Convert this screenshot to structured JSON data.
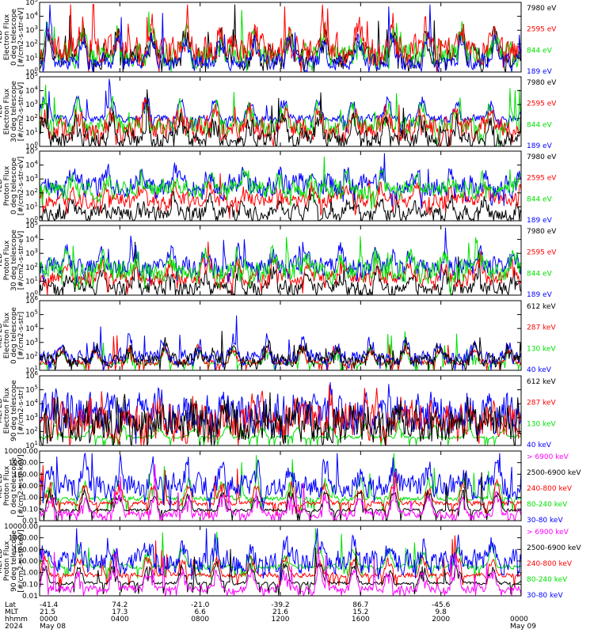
{
  "colors": {
    "black": "#000000",
    "red": "#ff0000",
    "green": "#00e000",
    "blue": "#0000ff",
    "magenta": "#ff00ff"
  },
  "chart_data": [
    {
      "type": "line",
      "ylabel": [
        "TED",
        "Electron Flux",
        "0 deg telescope",
        "[#/cm2-s-str-eV]"
      ],
      "ytick_labels": [
        "10^0",
        "10^1",
        "10^2",
        "10^3",
        "10^4",
        "10^5"
      ],
      "ylim": [
        1,
        100000
      ],
      "legend": [
        {
          "label": "7980 eV",
          "color": "black"
        },
        {
          "label": "2595 eV",
          "color": "red"
        },
        {
          "label": "844 eV",
          "color": "green"
        },
        {
          "label": "189 eV",
          "color": "blue"
        }
      ],
      "order": [
        "black",
        "green",
        "red",
        "blue"
      ],
      "levels": {
        "blue": [
          0.15,
          0.1
        ],
        "green": [
          0.25,
          0.15
        ],
        "red": [
          0.3,
          0.2
        ],
        "black": [
          0.2,
          0.15
        ]
      },
      "spikes": 0.45
    },
    {
      "type": "line",
      "ylabel": [
        "TED",
        "Electron Flux",
        "30 deg telescope",
        "[#/cm2-s-str-eV]"
      ],
      "ytick_labels": [
        "10^0",
        "10^1",
        "10^2",
        "10^3",
        "10^4",
        "10^5"
      ],
      "ylim": [
        1,
        100000
      ],
      "legend": [
        {
          "label": "7980 eV",
          "color": "black"
        },
        {
          "label": "2595 eV",
          "color": "red"
        },
        {
          "label": "844 eV",
          "color": "green"
        },
        {
          "label": "189 eV",
          "color": "blue"
        }
      ],
      "order": [
        "blue",
        "green",
        "red",
        "black"
      ],
      "levels": {
        "blue": [
          0.4,
          0.05
        ],
        "green": [
          0.3,
          0.12
        ],
        "red": [
          0.25,
          0.15
        ],
        "black": [
          0.1,
          0.12
        ]
      },
      "spikes": 0.4
    },
    {
      "type": "line",
      "ylabel": [
        "TED",
        "Proton Flux",
        "0 deg telescope",
        "[#/cm2-s-str-eV]"
      ],
      "ytick_labels": [
        "10^0",
        "10^1",
        "10^2",
        "10^3",
        "10^4",
        "10^5"
      ],
      "ylim": [
        1,
        100000
      ],
      "legend": [
        {
          "label": "7980 eV",
          "color": "black"
        },
        {
          "label": "2595 eV",
          "color": "red"
        },
        {
          "label": "844 eV",
          "color": "green"
        },
        {
          "label": "189 eV",
          "color": "blue"
        }
      ],
      "order": [
        "black",
        "red",
        "blue",
        "green"
      ],
      "levels": {
        "blue": [
          0.5,
          0.15
        ],
        "green": [
          0.45,
          0.12
        ],
        "red": [
          0.3,
          0.1
        ],
        "black": [
          0.1,
          0.1
        ]
      },
      "spikes": 0.25
    },
    {
      "type": "line",
      "ylabel": [
        "TED",
        "Proton Flux",
        "30 deg telescope",
        "[#/cm2-s-str-eV]"
      ],
      "ytick_labels": [
        "10^0",
        "10^1",
        "10^2",
        "10^3",
        "10^4",
        "10^5"
      ],
      "ylim": [
        1,
        100000
      ],
      "legend": [
        {
          "label": "7980 eV",
          "color": "black"
        },
        {
          "label": "2595 eV",
          "color": "red"
        },
        {
          "label": "844 eV",
          "color": "green"
        },
        {
          "label": "189 eV",
          "color": "blue"
        }
      ],
      "order": [
        "black",
        "red",
        "blue",
        "green"
      ],
      "levels": {
        "blue": [
          0.42,
          0.12
        ],
        "green": [
          0.35,
          0.15
        ],
        "red": [
          0.25,
          0.1
        ],
        "black": [
          0.1,
          0.1
        ]
      },
      "spikes": 0.3
    },
    {
      "type": "line",
      "ylabel": [
        "MEPED",
        "Electron Flux",
        "0 deg telescope",
        "[#/cm2-s-str]"
      ],
      "ytick_labels": [
        "10^1",
        "10^2",
        "10^3",
        "10^4",
        "10^5",
        "10^6"
      ],
      "ylim": [
        10,
        1000000
      ],
      "legend": [
        {
          "label": "612 keV",
          "color": "black"
        },
        {
          "label": "287 keV",
          "color": "red"
        },
        {
          "label": "130 keV",
          "color": "green"
        },
        {
          "label": "40 keV",
          "color": "blue"
        }
      ],
      "order": [
        "green",
        "red",
        "blue",
        "black"
      ],
      "levels": {
        "blue": [
          0.18,
          0.1
        ],
        "green": [
          0.1,
          0.02
        ],
        "red": [
          0.12,
          0.04
        ],
        "black": [
          0.15,
          0.08
        ]
      },
      "spikes": 0.3
    },
    {
      "type": "line",
      "ylabel": [
        "MEPED",
        "Electron Flux",
        "90 deg telescope",
        "[#/cm2-s-str]"
      ],
      "ytick_labels": [
        "10^1",
        "10^2",
        "10^3",
        "10^4",
        "10^5",
        "10^6"
      ],
      "ylim": [
        10,
        1000000
      ],
      "legend": [
        {
          "label": "612 keV",
          "color": "black"
        },
        {
          "label": "287 keV",
          "color": "red"
        },
        {
          "label": "130 keV",
          "color": "green"
        },
        {
          "label": "40 keV",
          "color": "blue"
        }
      ],
      "order": [
        "green",
        "blue",
        "red",
        "black"
      ],
      "levels": {
        "blue": [
          0.45,
          0.25
        ],
        "green": [
          0.12,
          0.02
        ],
        "red": [
          0.35,
          0.25
        ],
        "black": [
          0.3,
          0.25
        ]
      },
      "spikes": 0.2
    },
    {
      "type": "line",
      "ylabel": [
        "MEPED",
        "Proton Flux",
        "0 deg telescope",
        "[#/cm2-s-str-keV]"
      ],
      "ytick_labels": [
        "0.01",
        "0.10",
        "1.00",
        "10.00",
        "100.00",
        "1000.00",
        "10000.00"
      ],
      "ylim": [
        0.01,
        10000
      ],
      "legend": [
        {
          "label": "> 6900 keV",
          "color": "magenta"
        },
        {
          "label": "2500-6900 keV",
          "color": "black"
        },
        {
          "label": "240-800 keV",
          "color": "red"
        },
        {
          "label": "80-240 keV",
          "color": "green"
        },
        {
          "label": "30-80 keV",
          "color": "blue"
        }
      ],
      "order": [
        "green",
        "red",
        "blue",
        "black",
        "magenta"
      ],
      "levels": {
        "blue": [
          0.5,
          0.15
        ],
        "green": [
          0.32,
          0.03
        ],
        "red": [
          0.25,
          0.03
        ],
        "black": [
          0.15,
          0.02
        ],
        "magenta": [
          0.1,
          0.05
        ]
      },
      "spikes": 0.35
    },
    {
      "type": "line",
      "ylabel": [
        "MEPED",
        "Proton Flux",
        "90 deg telescope",
        "[#/cm2-s-str-keV]"
      ],
      "ytick_labels": [
        "0.01",
        "0.10",
        "1.00",
        "10.00",
        "100.00",
        "1000.00",
        "10000.00"
      ],
      "ylim": [
        0.01,
        10000
      ],
      "legend": [
        {
          "label": "> 6900 keV",
          "color": "magenta"
        },
        {
          "label": "2500-6900 keV",
          "color": "black"
        },
        {
          "label": "240-800 keV",
          "color": "red"
        },
        {
          "label": "80-240 keV",
          "color": "green"
        },
        {
          "label": "30-80 keV",
          "color": "blue"
        }
      ],
      "order": [
        "green",
        "red",
        "blue",
        "black",
        "magenta"
      ],
      "levels": {
        "blue": [
          0.5,
          0.15
        ],
        "green": [
          0.42,
          0.03
        ],
        "red": [
          0.3,
          0.03
        ],
        "black": [
          0.18,
          0.02
        ],
        "magenta": [
          0.1,
          0.05
        ]
      },
      "spikes": 0.35
    }
  ],
  "x_axis": {
    "row_labels": [
      "Lat",
      "MLT",
      "hhmm",
      "2024"
    ],
    "xlim_hours": [
      0,
      24
    ],
    "ticks": [
      {
        "hour": 0,
        "lat": "-41.4",
        "mlt": "21.5",
        "hhmm": "0000",
        "date": "May 08"
      },
      {
        "hour": 4,
        "lat": "74.2",
        "mlt": "17.3",
        "hhmm": "0400",
        "date": ""
      },
      {
        "hour": 8,
        "lat": "-21.0",
        "mlt": "6.6",
        "hhmm": "0800",
        "date": ""
      },
      {
        "hour": 12,
        "lat": "-39.2",
        "mlt": "21.6",
        "hhmm": "1200",
        "date": ""
      },
      {
        "hour": 16,
        "lat": "86.7",
        "mlt": "15.2",
        "hhmm": "1600",
        "date": ""
      },
      {
        "hour": 20,
        "lat": "-45.6",
        "mlt": "9.8",
        "hhmm": "2000",
        "date": ""
      },
      {
        "hour": 24,
        "lat": "",
        "mlt": "",
        "hhmm": "0000",
        "date": "May 09"
      }
    ]
  }
}
